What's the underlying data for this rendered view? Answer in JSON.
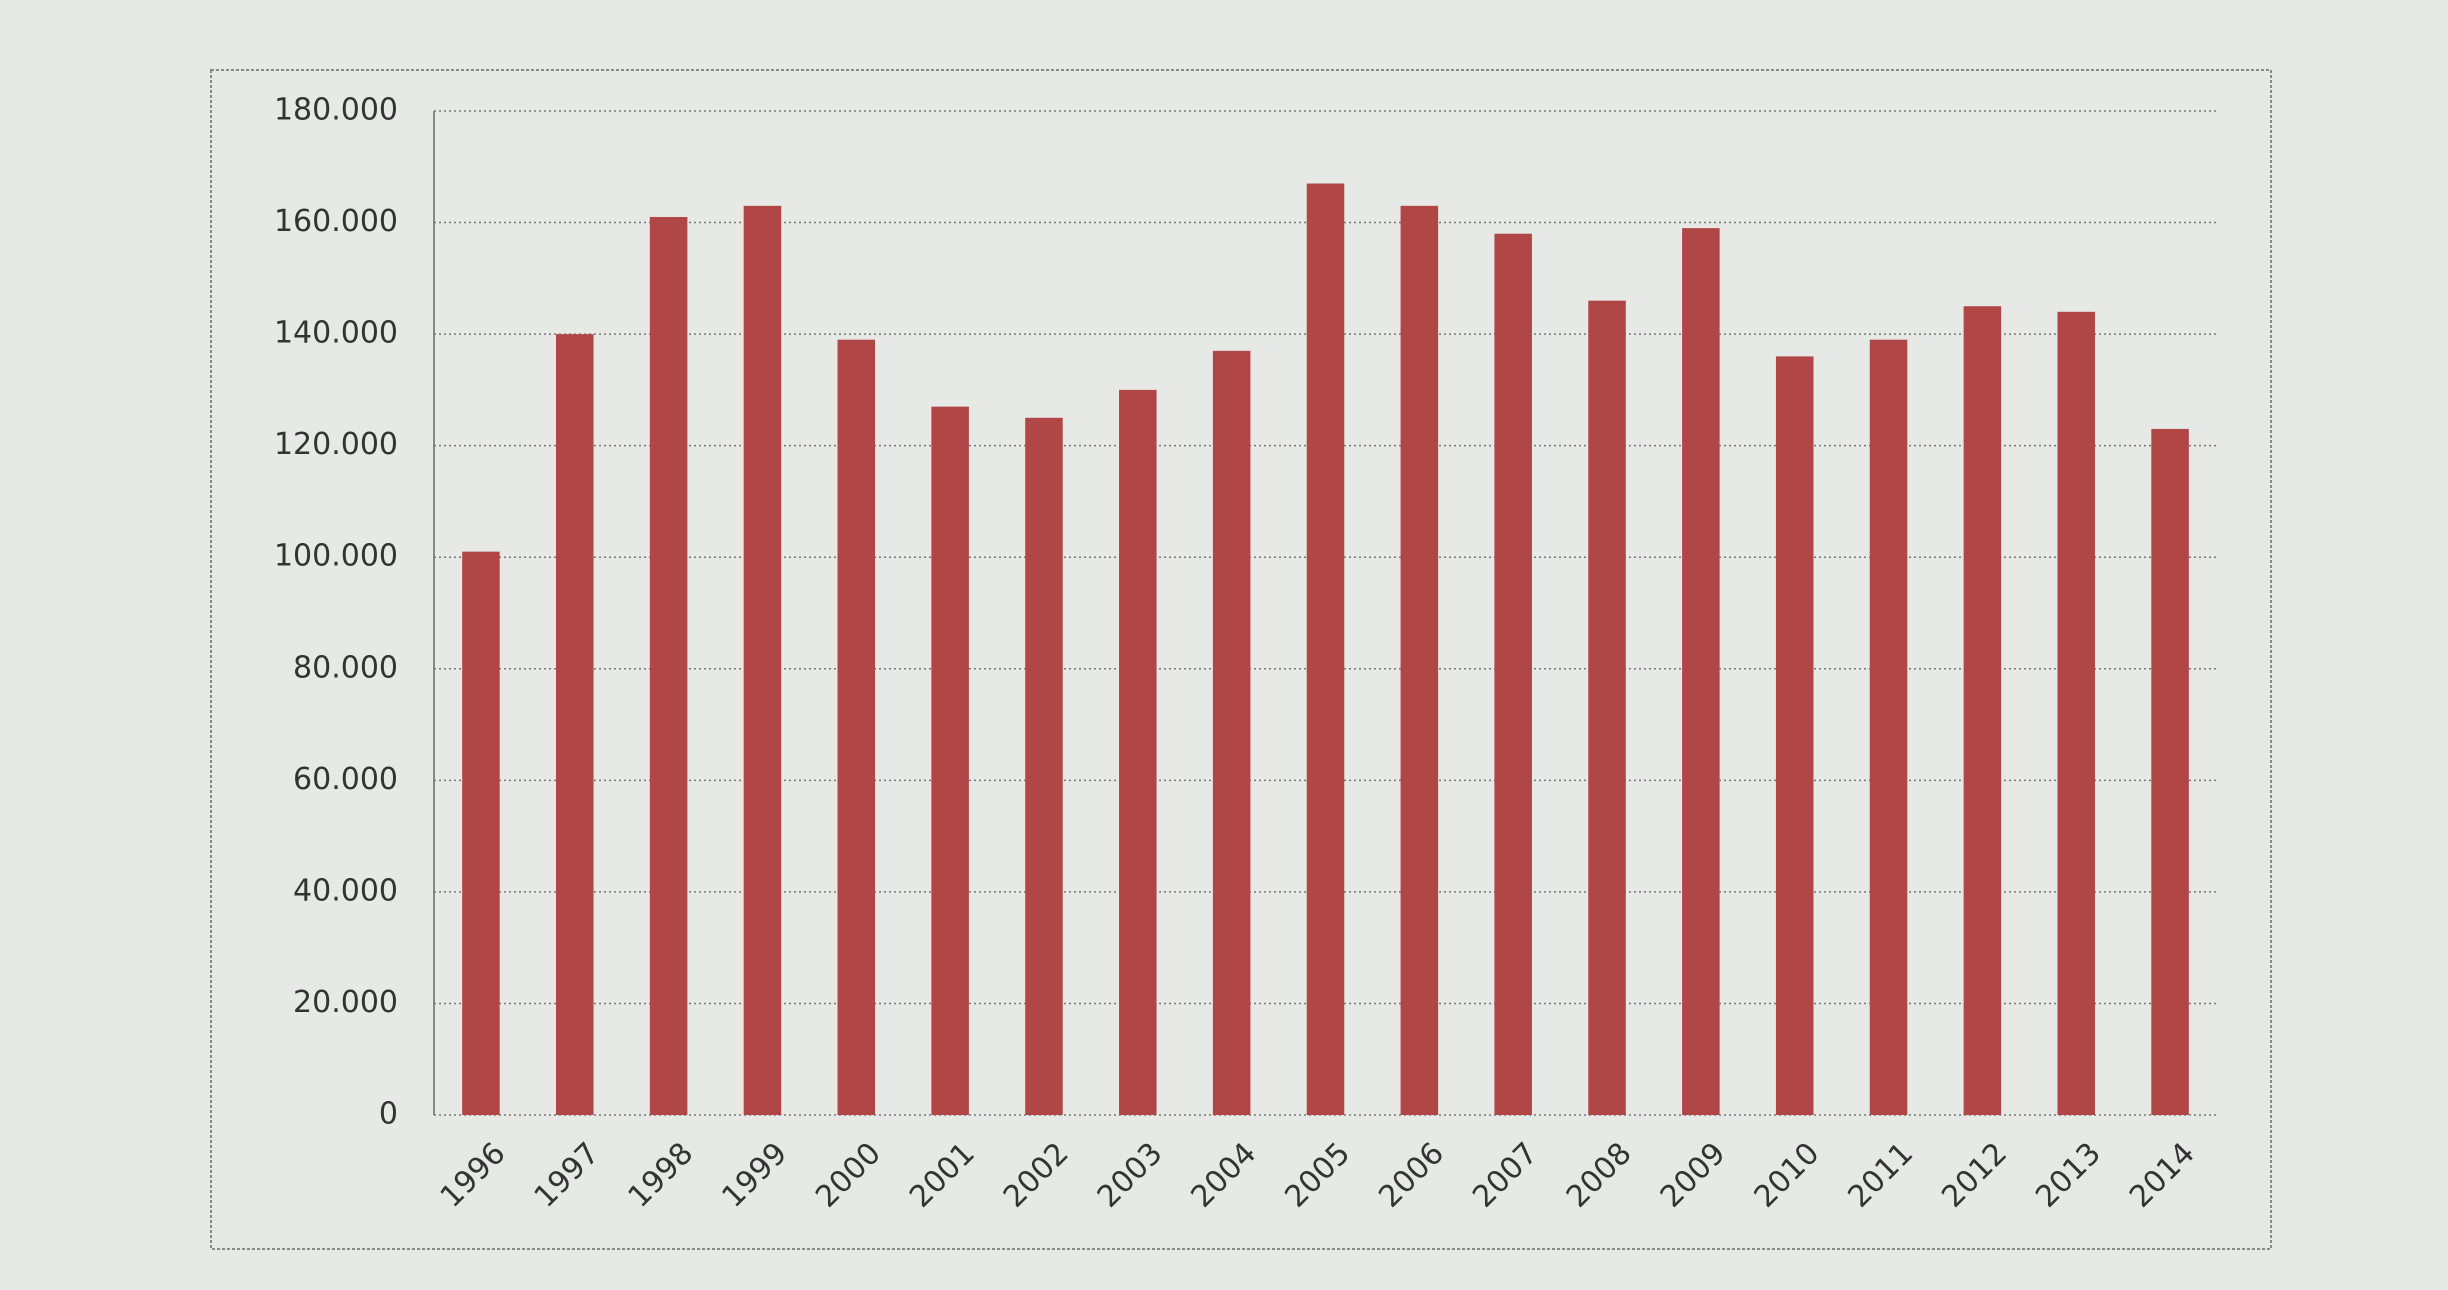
{
  "chart_data": {
    "type": "bar",
    "categories": [
      "1996",
      "1997",
      "1998",
      "1999",
      "2000",
      "2001",
      "2002",
      "2003",
      "2004",
      "2005",
      "2006",
      "2007",
      "2008",
      "2009",
      "2010",
      "2011",
      "2012",
      "2013",
      "2014"
    ],
    "values": [
      101000,
      140000,
      161000,
      163000,
      139000,
      127000,
      125000,
      130000,
      137000,
      167000,
      163000,
      158000,
      146000,
      159000,
      136000,
      139000,
      145000,
      144000,
      123000
    ],
    "color": "#b04646",
    "ylim": [
      0,
      180000
    ],
    "yticks": [
      0,
      {
        "value": 20000,
        "label": "20.000"
      },
      {
        "value": 40000,
        "label": "40.000"
      },
      {
        "value": 60000,
        "label": "60.000"
      },
      {
        "value": 80000,
        "label": "80.000"
      },
      {
        "value": 100000,
        "label": "100.000"
      },
      {
        "value": 120000,
        "label": "120.000"
      },
      {
        "value": 140000,
        "label": "140.000"
      },
      {
        "value": 160000,
        "label": "160.000"
      },
      {
        "value": 180000,
        "label": "180.000"
      }
    ],
    "grid": true
  }
}
